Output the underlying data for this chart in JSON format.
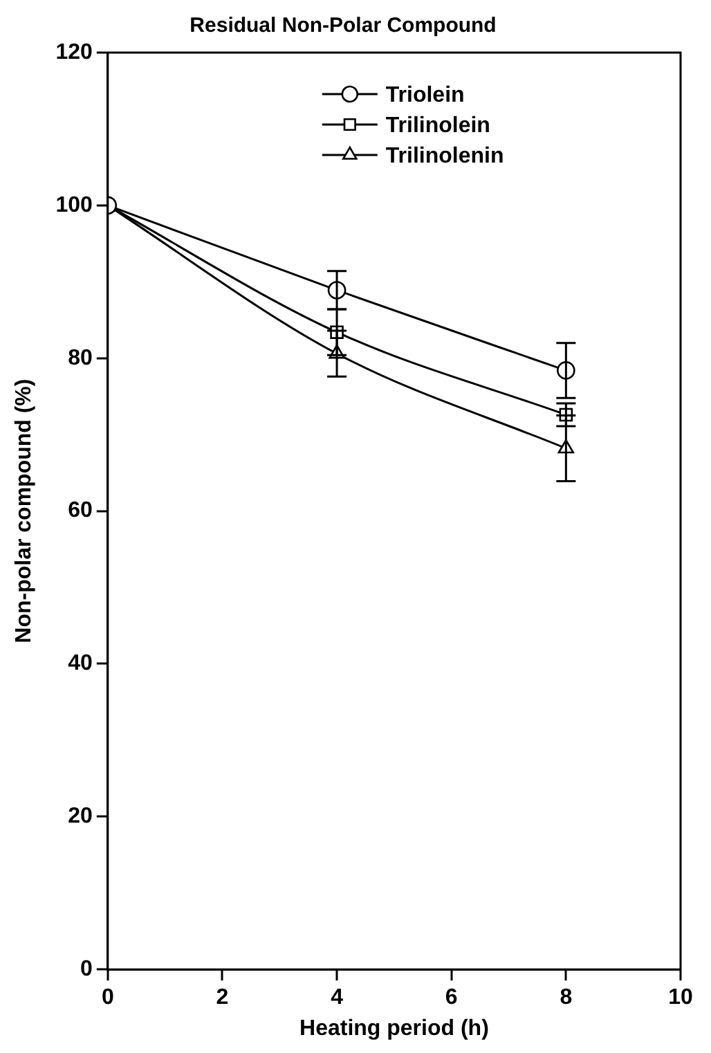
{
  "chart_data": {
    "type": "line",
    "title": "Residual Non-Polar Compound",
    "xlabel": "Heating period (h)",
    "ylabel": "Non-polar compound (%)",
    "x": [
      0,
      4,
      8
    ],
    "xlim": [
      0,
      10
    ],
    "xticks": [
      0,
      2,
      4,
      6,
      8,
      10
    ],
    "ylim": [
      0,
      120
    ],
    "yticks": [
      0,
      20,
      40,
      60,
      80,
      100,
      120
    ],
    "legend": "top right",
    "line_style": "solid",
    "series": [
      {
        "name": "Triolein",
        "color": "#000000",
        "marker": "circle",
        "values": [
          100,
          88.9,
          78.4
        ],
        "errors": [
          null,
          2.5,
          3.6
        ]
      },
      {
        "name": "Trilinolein",
        "color": "#000000",
        "marker": "square",
        "values": [
          100,
          83.4,
          72.6
        ],
        "errors": [
          null,
          3,
          1.5
        ]
      },
      {
        "name": "Trilinolenin",
        "color": "#000000",
        "marker": "triangle",
        "values": [
          100,
          80.6,
          68.2
        ],
        "errors": [
          null,
          3,
          4.3
        ]
      }
    ]
  }
}
